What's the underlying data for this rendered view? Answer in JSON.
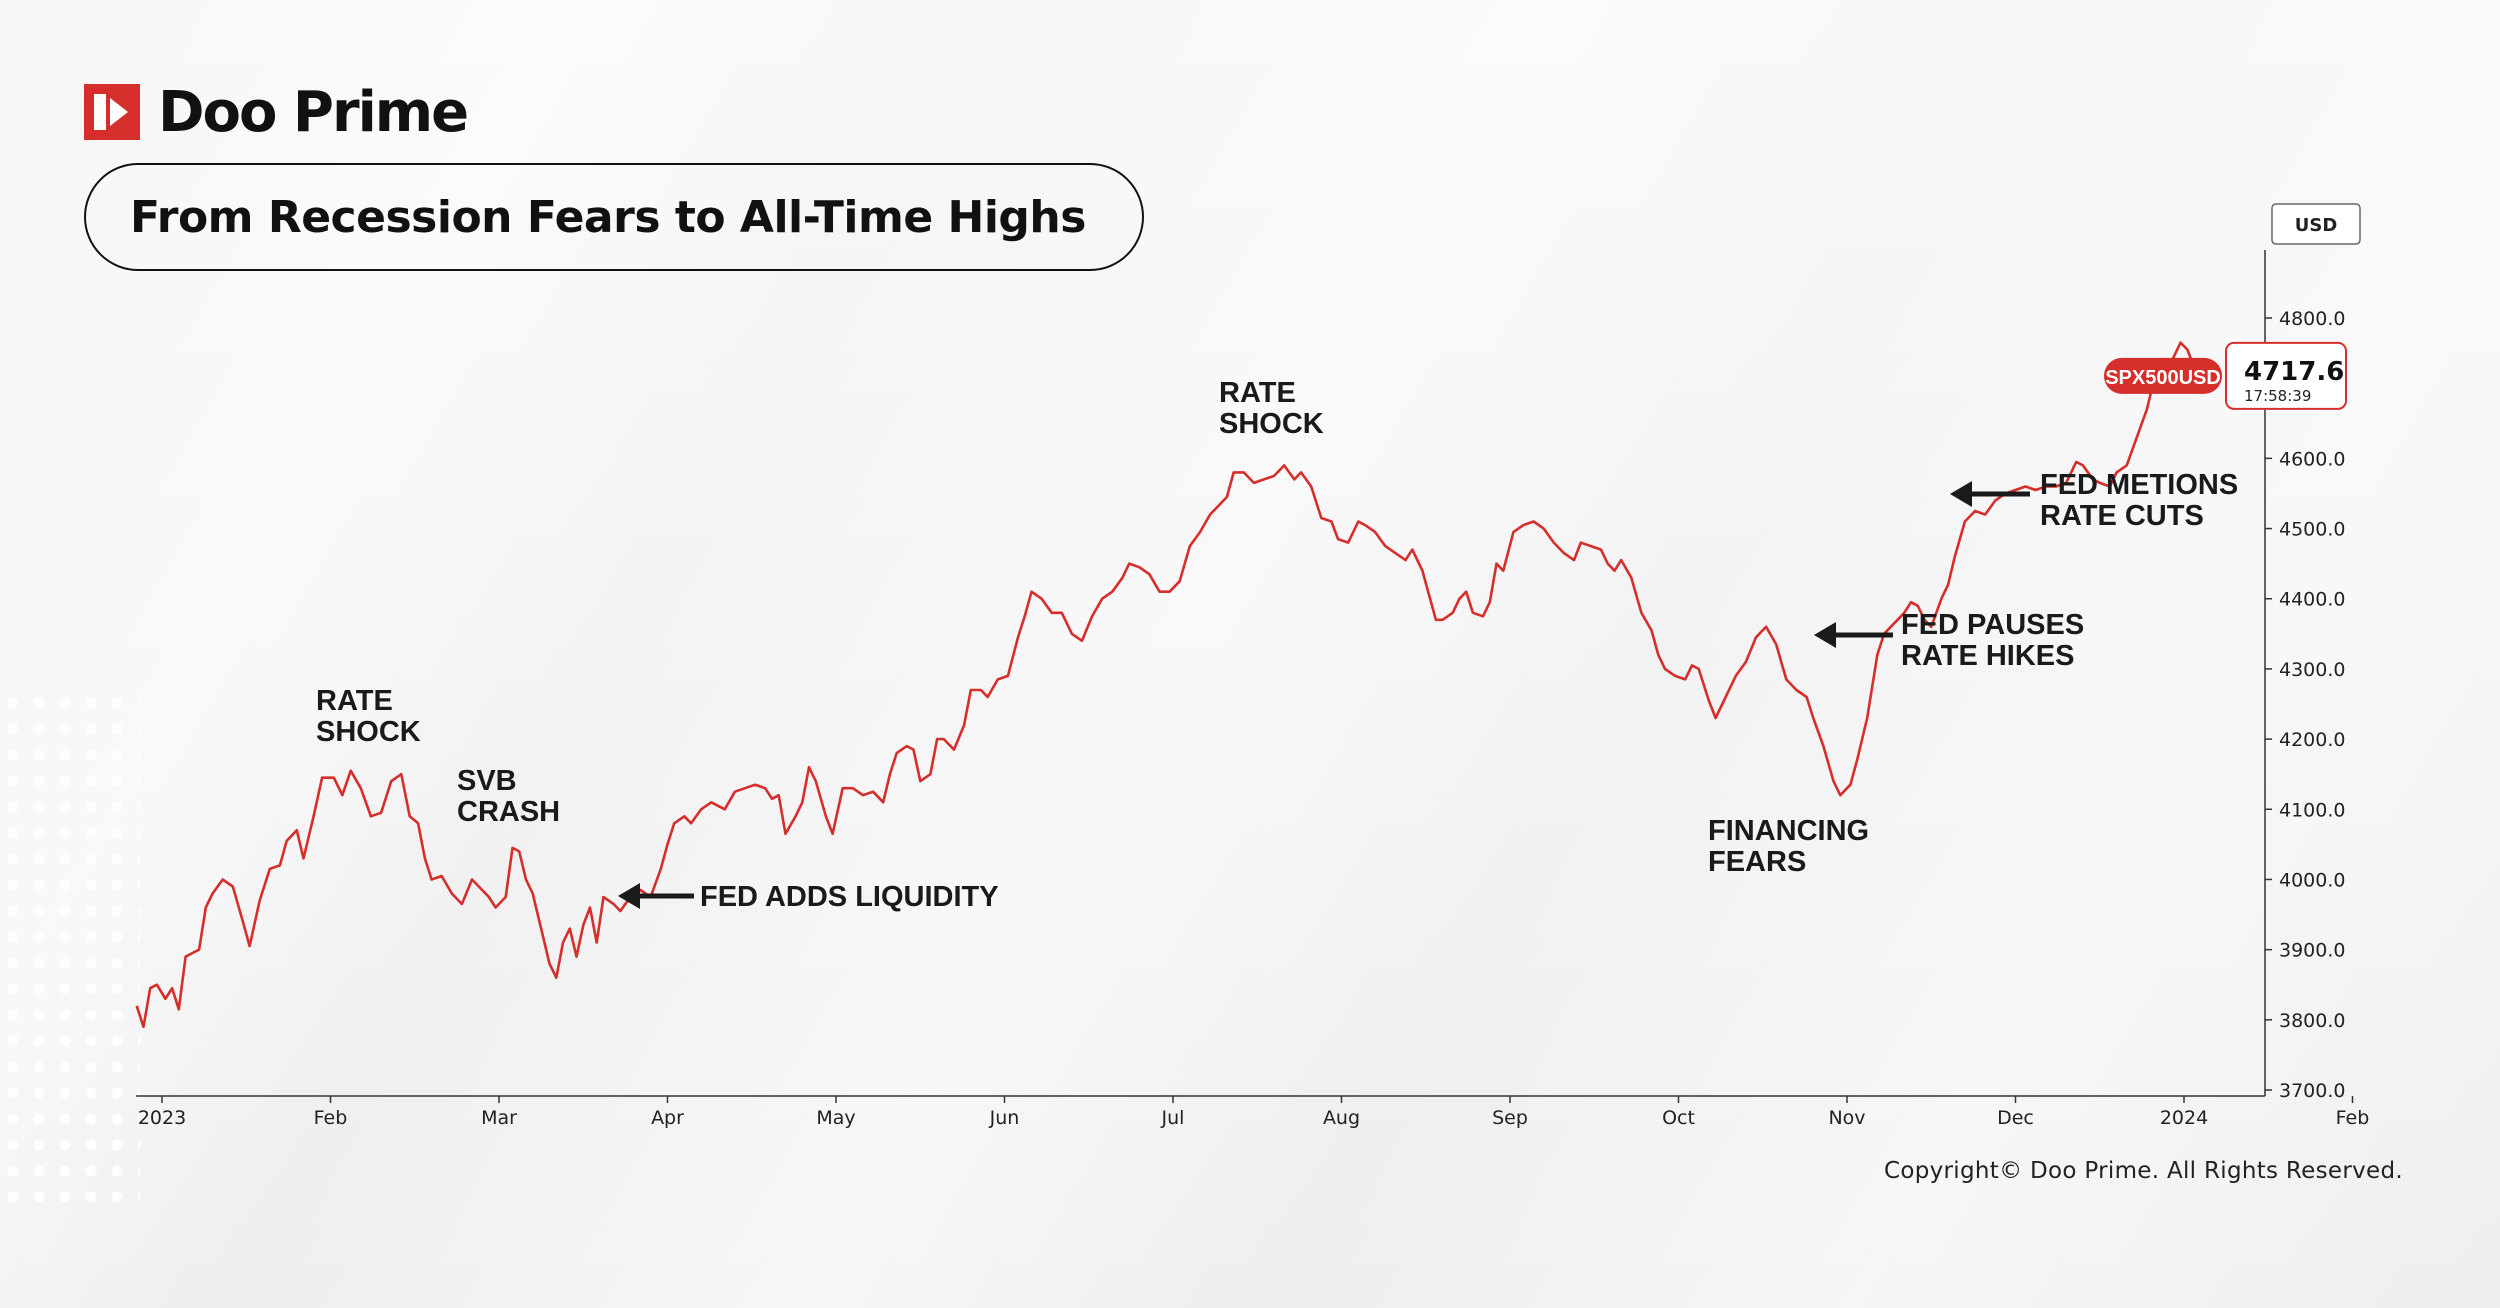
{
  "brand": {
    "name": "Doo Prime"
  },
  "title": "From Recession Fears to All-Time Highs",
  "copyright": "Copyright© Doo Prime. All Rights Reserved.",
  "colors": {
    "line": "#d62e2b",
    "brand_red": "#d62e2b",
    "text": "#111111",
    "axis": "#333333"
  },
  "chart_data": {
    "type": "line",
    "currency": "USD",
    "symbol": "SPX500USD",
    "last_price": "4717.6",
    "last_time": "17:58:39",
    "ylim": [
      3700,
      4800
    ],
    "y_ticks": [
      "3700.0",
      "3800.0",
      "3900.0",
      "4000.0",
      "4100.0",
      "4200.0",
      "4300.0",
      "4400.0",
      "4500.0",
      "4600.0",
      "4800.0"
    ],
    "x_range": [
      2023.0,
      2024.0
    ],
    "x_ticks": [
      {
        "label": "2023",
        "x": 0
      },
      {
        "label": "Feb",
        "x": 1
      },
      {
        "label": "Mar",
        "x": 2
      },
      {
        "label": "Apr",
        "x": 3
      },
      {
        "label": "May",
        "x": 4
      },
      {
        "label": "Jun",
        "x": 5
      },
      {
        "label": "Jul",
        "x": 6
      },
      {
        "label": "Aug",
        "x": 7
      },
      {
        "label": "Sep",
        "x": 8
      },
      {
        "label": "Oct",
        "x": 9
      },
      {
        "label": "Nov",
        "x": 10
      },
      {
        "label": "Dec",
        "x": 11
      },
      {
        "label": "2024",
        "x": 12
      },
      {
        "label": "Feb",
        "x": 13
      }
    ],
    "x_axis_unit": "months since Jan 2023",
    "series": [
      {
        "values": [
          [
            -0.15,
            3820
          ],
          [
            -0.11,
            3790
          ],
          [
            -0.07,
            3845
          ],
          [
            -0.03,
            3850
          ],
          [
            0.02,
            3830
          ],
          [
            0.06,
            3845
          ],
          [
            0.1,
            3815
          ],
          [
            0.14,
            3890
          ],
          [
            0.18,
            3895
          ],
          [
            0.22,
            3900
          ],
          [
            0.26,
            3960
          ],
          [
            0.3,
            3980
          ],
          [
            0.36,
            4000
          ],
          [
            0.42,
            3990
          ],
          [
            0.48,
            3940
          ],
          [
            0.52,
            3905
          ],
          [
            0.58,
            3970
          ],
          [
            0.64,
            4015
          ],
          [
            0.7,
            4020
          ],
          [
            0.74,
            4055
          ],
          [
            0.8,
            4070
          ],
          [
            0.84,
            4030
          ],
          [
            0.9,
            4090
          ],
          [
            0.95,
            4145
          ],
          [
            1.02,
            4145
          ],
          [
            1.07,
            4120
          ],
          [
            1.12,
            4155
          ],
          [
            1.18,
            4130
          ],
          [
            1.24,
            4090
          ],
          [
            1.3,
            4095
          ],
          [
            1.36,
            4140
          ],
          [
            1.42,
            4150
          ],
          [
            1.47,
            4090
          ],
          [
            1.52,
            4080
          ],
          [
            1.56,
            4030
          ],
          [
            1.6,
            4000
          ],
          [
            1.66,
            4005
          ],
          [
            1.72,
            3980
          ],
          [
            1.78,
            3965
          ],
          [
            1.84,
            4000
          ],
          [
            1.88,
            3990
          ],
          [
            1.94,
            3975
          ],
          [
            1.98,
            3960
          ],
          [
            2.04,
            3975
          ],
          [
            2.08,
            4045
          ],
          [
            2.12,
            4040
          ],
          [
            2.16,
            4000
          ],
          [
            2.2,
            3980
          ],
          [
            2.26,
            3920
          ],
          [
            2.3,
            3880
          ],
          [
            2.34,
            3860
          ],
          [
            2.38,
            3910
          ],
          [
            2.42,
            3930
          ],
          [
            2.46,
            3890
          ],
          [
            2.5,
            3935
          ],
          [
            2.54,
            3960
          ],
          [
            2.58,
            3910
          ],
          [
            2.62,
            3975
          ],
          [
            2.68,
            3965
          ],
          [
            2.72,
            3955
          ],
          [
            2.78,
            3975
          ],
          [
            2.84,
            3985
          ],
          [
            2.9,
            3975
          ],
          [
            2.96,
            4015
          ],
          [
            3.0,
            4050
          ],
          [
            3.04,
            4080
          ],
          [
            3.1,
            4090
          ],
          [
            3.14,
            4080
          ],
          [
            3.2,
            4100
          ],
          [
            3.26,
            4110
          ],
          [
            3.3,
            4105
          ],
          [
            3.34,
            4100
          ],
          [
            3.4,
            4125
          ],
          [
            3.46,
            4130
          ],
          [
            3.52,
            4135
          ],
          [
            3.58,
            4130
          ],
          [
            3.62,
            4115
          ],
          [
            3.66,
            4120
          ],
          [
            3.7,
            4065
          ],
          [
            3.76,
            4090
          ],
          [
            3.8,
            4110
          ],
          [
            3.84,
            4160
          ],
          [
            3.88,
            4140
          ],
          [
            3.94,
            4090
          ],
          [
            3.98,
            4065
          ],
          [
            4.04,
            4130
          ],
          [
            4.1,
            4130
          ],
          [
            4.16,
            4120
          ],
          [
            4.22,
            4125
          ],
          [
            4.28,
            4110
          ],
          [
            4.32,
            4150
          ],
          [
            4.36,
            4180
          ],
          [
            4.42,
            4190
          ],
          [
            4.46,
            4185
          ],
          [
            4.5,
            4140
          ],
          [
            4.56,
            4150
          ],
          [
            4.6,
            4200
          ],
          [
            4.64,
            4200
          ],
          [
            4.7,
            4185
          ],
          [
            4.76,
            4220
          ],
          [
            4.8,
            4270
          ],
          [
            4.86,
            4270
          ],
          [
            4.9,
            4260
          ],
          [
            4.96,
            4285
          ],
          [
            5.02,
            4290
          ],
          [
            5.08,
            4345
          ],
          [
            5.12,
            4375
          ],
          [
            5.16,
            4410
          ],
          [
            5.22,
            4400
          ],
          [
            5.28,
            4380
          ],
          [
            5.34,
            4380
          ],
          [
            5.4,
            4350
          ],
          [
            5.46,
            4340
          ],
          [
            5.52,
            4375
          ],
          [
            5.58,
            4400
          ],
          [
            5.64,
            4410
          ],
          [
            5.7,
            4430
          ],
          [
            5.74,
            4450
          ],
          [
            5.8,
            4445
          ],
          [
            5.86,
            4435
          ],
          [
            5.92,
            4410
          ],
          [
            5.98,
            4410
          ],
          [
            6.04,
            4425
          ],
          [
            6.1,
            4475
          ],
          [
            6.16,
            4495
          ],
          [
            6.22,
            4520
          ],
          [
            6.28,
            4535
          ],
          [
            6.32,
            4545
          ],
          [
            6.36,
            4580
          ],
          [
            6.42,
            4580
          ],
          [
            6.48,
            4565
          ],
          [
            6.54,
            4570
          ],
          [
            6.6,
            4575
          ],
          [
            6.66,
            4590
          ],
          [
            6.72,
            4570
          ],
          [
            6.76,
            4580
          ],
          [
            6.82,
            4560
          ],
          [
            6.88,
            4515
          ],
          [
            6.94,
            4510
          ],
          [
            6.98,
            4485
          ],
          [
            7.04,
            4480
          ],
          [
            7.1,
            4510
          ],
          [
            7.14,
            4505
          ],
          [
            7.2,
            4495
          ],
          [
            7.26,
            4475
          ],
          [
            7.32,
            4465
          ],
          [
            7.38,
            4455
          ],
          [
            7.42,
            4470
          ],
          [
            7.48,
            4440
          ],
          [
            7.52,
            4405
          ],
          [
            7.56,
            4370
          ],
          [
            7.6,
            4370
          ],
          [
            7.66,
            4380
          ],
          [
            7.7,
            4400
          ],
          [
            7.74,
            4410
          ],
          [
            7.78,
            4380
          ],
          [
            7.84,
            4375
          ],
          [
            7.88,
            4395
          ],
          [
            7.92,
            4450
          ],
          [
            7.96,
            4440
          ],
          [
            8.02,
            4495
          ],
          [
            8.08,
            4505
          ],
          [
            8.14,
            4510
          ],
          [
            8.2,
            4500
          ],
          [
            8.26,
            4480
          ],
          [
            8.32,
            4465
          ],
          [
            8.38,
            4455
          ],
          [
            8.42,
            4480
          ],
          [
            8.48,
            4475
          ],
          [
            8.54,
            4470
          ],
          [
            8.58,
            4450
          ],
          [
            8.62,
            4440
          ],
          [
            8.66,
            4455
          ],
          [
            8.72,
            4430
          ],
          [
            8.78,
            4380
          ],
          [
            8.84,
            4355
          ],
          [
            8.88,
            4320
          ],
          [
            8.92,
            4300
          ],
          [
            8.98,
            4290
          ],
          [
            9.04,
            4285
          ],
          [
            9.08,
            4305
          ],
          [
            9.12,
            4300
          ],
          [
            9.18,
            4255
          ],
          [
            9.22,
            4230
          ],
          [
            9.28,
            4260
          ],
          [
            9.34,
            4290
          ],
          [
            9.4,
            4310
          ],
          [
            9.46,
            4345
          ],
          [
            9.52,
            4360
          ],
          [
            9.58,
            4335
          ],
          [
            9.64,
            4285
          ],
          [
            9.7,
            4270
          ],
          [
            9.76,
            4260
          ],
          [
            9.8,
            4230
          ],
          [
            9.86,
            4190
          ],
          [
            9.92,
            4140
          ],
          [
            9.96,
            4120
          ],
          [
            10.02,
            4135
          ],
          [
            10.06,
            4170
          ],
          [
            10.12,
            4230
          ],
          [
            10.18,
            4320
          ],
          [
            10.22,
            4350
          ],
          [
            10.28,
            4365
          ],
          [
            10.34,
            4380
          ],
          [
            10.38,
            4395
          ],
          [
            10.42,
            4390
          ],
          [
            10.46,
            4370
          ],
          [
            10.5,
            4360
          ],
          [
            10.56,
            4400
          ],
          [
            10.6,
            4420
          ],
          [
            10.64,
            4460
          ],
          [
            10.7,
            4510
          ],
          [
            10.76,
            4525
          ],
          [
            10.82,
            4520
          ],
          [
            10.88,
            4540
          ],
          [
            10.94,
            4550
          ],
          [
            11.0,
            4555
          ],
          [
            11.06,
            4560
          ],
          [
            11.12,
            4555
          ],
          [
            11.18,
            4560
          ],
          [
            11.24,
            4560
          ],
          [
            11.3,
            4565
          ],
          [
            11.36,
            4595
          ],
          [
            11.4,
            4590
          ],
          [
            11.46,
            4570
          ],
          [
            11.5,
            4565
          ],
          [
            11.56,
            4560
          ],
          [
            11.6,
            4580
          ],
          [
            11.66,
            4590
          ],
          [
            11.72,
            4630
          ],
          [
            11.78,
            4670
          ],
          [
            11.82,
            4710
          ],
          [
            11.88,
            4720
          ],
          [
            11.94,
            4745
          ],
          [
            11.98,
            4765
          ],
          [
            12.02,
            4755
          ],
          [
            12.06,
            4730
          ],
          [
            12.1,
            4700
          ],
          [
            12.16,
            4720
          ]
        ]
      }
    ],
    "annotations": [
      {
        "id": "rate-shock-1",
        "lines": [
          "RATE",
          "SHOCK"
        ]
      },
      {
        "id": "svb-crash",
        "lines": [
          "SVB",
          "CRASH"
        ]
      },
      {
        "id": "fed-adds-liquidity",
        "lines": [
          "FED ADDS LIQUIDITY"
        ],
        "arrow": true
      },
      {
        "id": "rate-shock-2",
        "lines": [
          "RATE",
          "SHOCK"
        ]
      },
      {
        "id": "financing-fears",
        "lines": [
          "FINANCING",
          "FEARS"
        ]
      },
      {
        "id": "fed-pauses",
        "lines": [
          "FED PAUSES",
          "RATE HIKES"
        ],
        "arrow": true
      },
      {
        "id": "fed-metions",
        "lines": [
          "FED METIONS",
          "RATE CUTS"
        ],
        "arrow": true
      }
    ]
  }
}
